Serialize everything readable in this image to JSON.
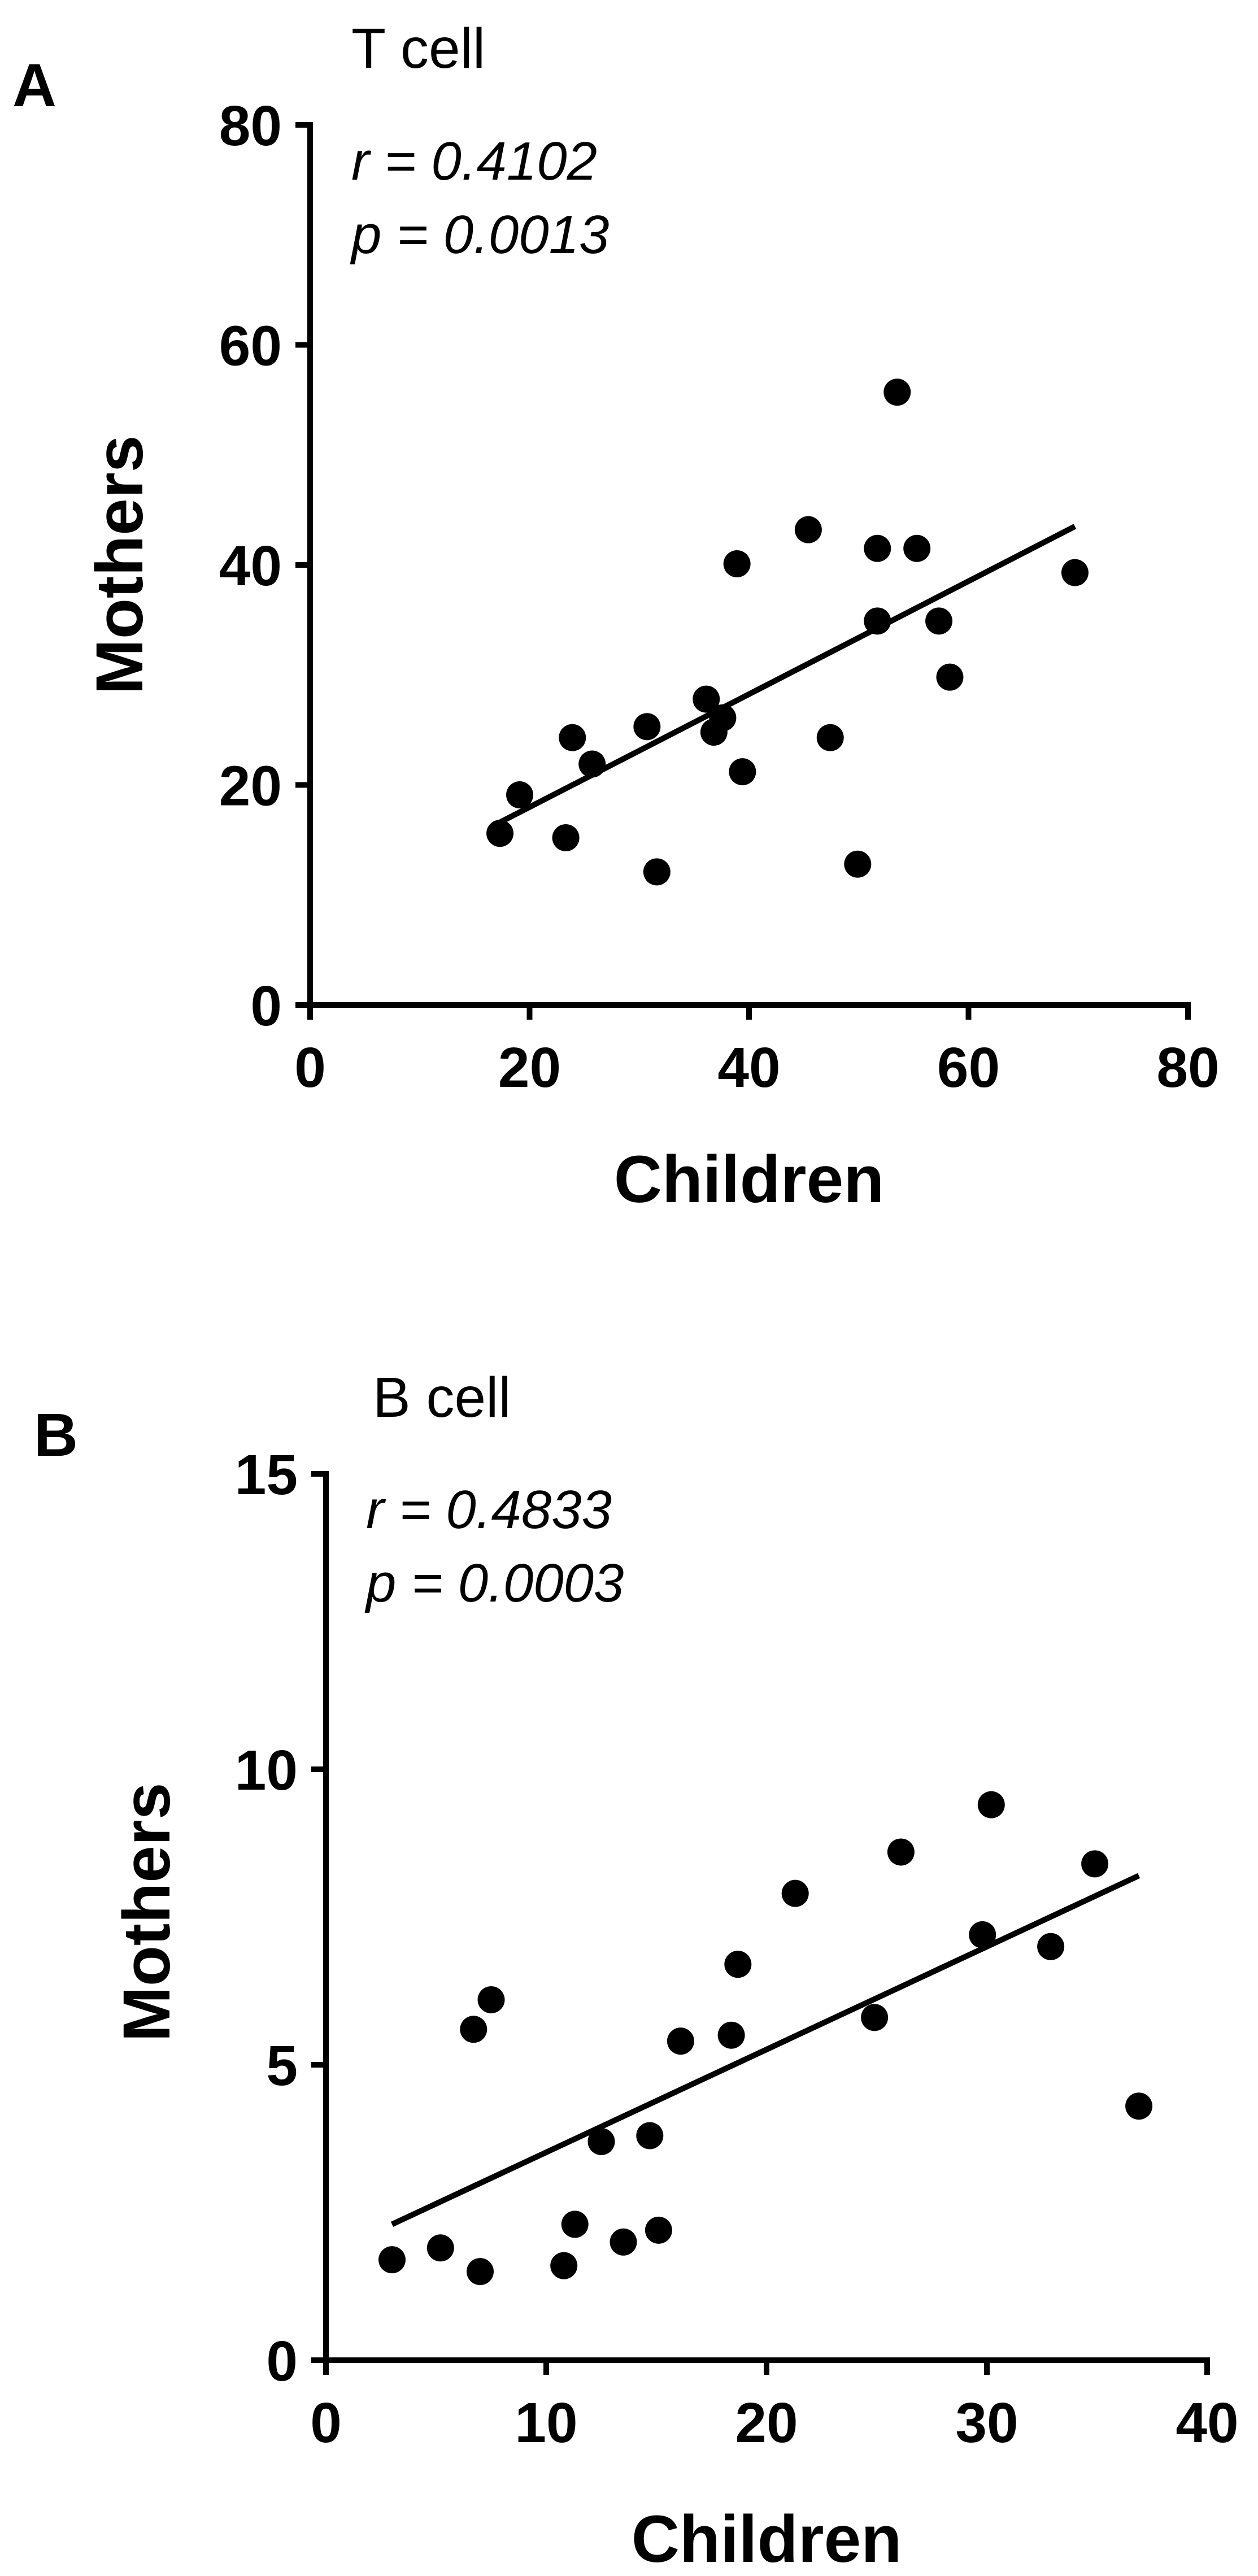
{
  "chart_data": [
    {
      "panel": "A",
      "type": "scatter",
      "title": "T cell",
      "annotations": {
        "r": "r = 0.4102",
        "p": "p = 0.0013"
      },
      "xlabel": "Children",
      "ylabel": "Mothers",
      "xlim": [
        0,
        80
      ],
      "ylim": [
        0,
        80
      ],
      "xticks": [
        0,
        20,
        40,
        60,
        80
      ],
      "yticks": [
        0,
        20,
        40,
        60,
        80
      ],
      "points": [
        [
          17.3,
          15.6
        ],
        [
          19.1,
          19.1
        ],
        [
          23.3,
          15.2
        ],
        [
          23.9,
          24.3
        ],
        [
          25.7,
          21.9
        ],
        [
          30.7,
          25.3
        ],
        [
          31.6,
          12.1
        ],
        [
          36.1,
          27.8
        ],
        [
          36.8,
          24.8
        ],
        [
          37.6,
          26.1
        ],
        [
          38.9,
          40.1
        ],
        [
          39.4,
          21.2
        ],
        [
          45.4,
          43.2
        ],
        [
          47.4,
          24.3
        ],
        [
          49.9,
          12.8
        ],
        [
          51.7,
          41.5
        ],
        [
          51.7,
          34.9
        ],
        [
          53.5,
          55.7
        ],
        [
          55.3,
          41.5
        ],
        [
          57.3,
          34.9
        ],
        [
          58.3,
          29.8
        ],
        [
          69.7,
          39.3
        ]
      ],
      "fit": {
        "x": [
          17.3,
          69.7
        ],
        "y": [
          16.6,
          43.5
        ]
      }
    },
    {
      "panel": "B",
      "type": "scatter",
      "title": "B cell",
      "annotations": {
        "r": "r = 0.4833",
        "p": "p = 0.0003"
      },
      "xlabel": "Children",
      "ylabel": "Mothers",
      "xlim": [
        0,
        40
      ],
      "ylim": [
        0,
        15
      ],
      "xticks": [
        0,
        10,
        20,
        30,
        40
      ],
      "yticks": [
        0,
        5,
        10,
        15
      ],
      "points": [
        [
          3.0,
          1.7
        ],
        [
          5.2,
          1.9
        ],
        [
          6.7,
          5.6
        ],
        [
          7.0,
          1.5
        ],
        [
          7.5,
          6.1
        ],
        [
          10.8,
          1.6
        ],
        [
          11.3,
          2.3
        ],
        [
          12.5,
          3.7
        ],
        [
          13.5,
          2.0
        ],
        [
          14.7,
          3.8
        ],
        [
          15.1,
          2.2
        ],
        [
          16.1,
          5.4
        ],
        [
          18.4,
          5.5
        ],
        [
          18.7,
          6.7
        ],
        [
          21.3,
          7.9
        ],
        [
          24.9,
          5.8
        ],
        [
          26.1,
          8.6
        ],
        [
          29.8,
          7.2
        ],
        [
          30.2,
          9.4
        ],
        [
          32.9,
          7.0
        ],
        [
          34.9,
          8.4
        ],
        [
          36.9,
          4.3
        ]
      ],
      "fit": {
        "x": [
          3.0,
          36.9
        ],
        "y": [
          2.3,
          8.2
        ]
      }
    }
  ]
}
